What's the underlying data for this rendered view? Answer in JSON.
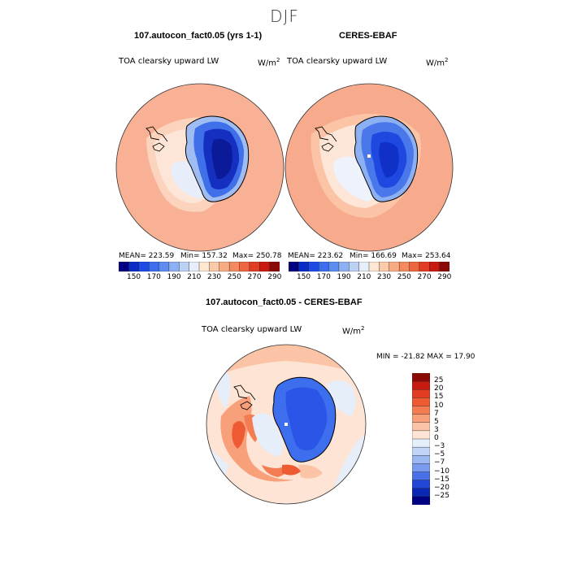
{
  "season": "DJF",
  "panels": [
    {
      "title": "107.autocon_fact0.05 (yrs 1-1)",
      "variable": "TOA clearsky upward LW",
      "units": "W/m",
      "units_exp": "2",
      "mean": "MEAN= 223.59",
      "min": "Min= 157.32",
      "max": "Max= 250.78"
    },
    {
      "title": "CERES-EBAF",
      "variable": "TOA clearsky upward LW",
      "units": "W/m",
      "units_exp": "2",
      "mean": "MEAN= 223.62",
      "min": "Min= 166.69",
      "max": "Max= 253.64"
    }
  ],
  "colorbar_abs": {
    "labels": [
      "150",
      "170",
      "190",
      "210",
      "230",
      "250",
      "270",
      "290"
    ],
    "colors": [
      "#000080",
      "#0a2dc8",
      "#1e4be6",
      "#3c6eee",
      "#5f8cf0",
      "#8cb0f2",
      "#bcd2f5",
      "#e6eefa",
      "#fde6d2",
      "#fccaa8",
      "#f9ab84",
      "#f58a60",
      "#ee6540",
      "#e23c22",
      "#c81a0e",
      "#8c0a05"
    ]
  },
  "diff": {
    "title": "107.autocon_fact0.05 - CERES-EBAF",
    "variable": "TOA clearsky upward LW",
    "units": "W/m",
    "units_exp": "2",
    "minmax": "MIN = -21.82 MAX =  17.90",
    "colorbar": {
      "labels": [
        "25",
        "20",
        "15",
        "10",
        "7",
        "5",
        "3",
        "0",
        "−3",
        "−5",
        "−7",
        "−10",
        "−15",
        "−20",
        "−25"
      ],
      "colors": [
        "#8c0a05",
        "#c81a0e",
        "#e23c22",
        "#ee5a32",
        "#f47c52",
        "#f8a07a",
        "#fbc4a6",
        "#fde4d4",
        "#e6eefa",
        "#c0d4f6",
        "#9cb8f2",
        "#7a9af0",
        "#4a70e8",
        "#2246d6",
        "#0a28b4",
        "#000080"
      ]
    }
  }
}
